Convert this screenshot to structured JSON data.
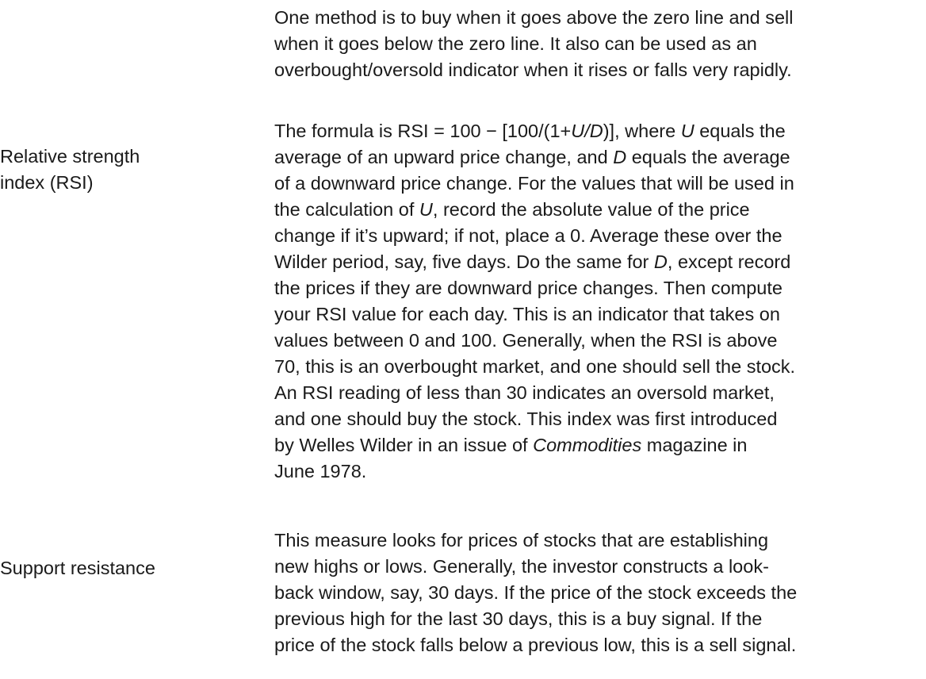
{
  "entries": [
    {
      "term": [],
      "definition": [
        "One method is to buy when it goes above the zero line and sell",
        "when it goes below the zero line. It also can be used as an",
        "overbought/oversold indicator when it rises or falls very rapidly."
      ]
    },
    {
      "term": [
        "Relative strength",
        "index (RSI)"
      ],
      "definition": {
        "l1_a": "The formula is RSI = 100 − [100/(1+",
        "l1_b": "U/D",
        "l1_c": ")], where ",
        "l1_d": "U",
        "l1_e": " equals the",
        "l2_a": "average of an upward price change, and ",
        "l2_b": "D",
        "l2_c": " equals the average",
        "l3": "of a downward price change. For the values that will be used in",
        "l4_a": "the calculation of ",
        "l4_b": "U",
        "l4_c": ", record the absolute value of the price",
        "l5": "change if it’s upward; if not, place a 0. Average these over the",
        "l6_a": "Wilder period, say, five days. Do the same for ",
        "l6_b": "D",
        "l6_c": ", except record",
        "l7": "the prices if they are downward price changes. Then compute",
        "l8": "your RSI value for each day. This is an indicator that takes on",
        "l9": "values between 0 and 100. Generally, when the RSI is above",
        "l10": "70, this is an overbought market, and one should sell the stock.",
        "l11": "An RSI reading of less than 30 indicates an oversold market,",
        "l12": "and one should buy the stock. This index was first introduced",
        "l13_a": "by Welles Wilder in an issue of ",
        "l13_b": "Commodities",
        "l13_c": " magazine in",
        "l14": "June 1978."
      }
    },
    {
      "term": [
        "Support resistance"
      ],
      "definition": [
        "This measure looks for prices of stocks that are establishing",
        "new highs or lows. Generally, the investor constructs a look-",
        "back window, say, 30 days. If the price of the stock exceeds the",
        "previous high for the last 30 days, this is a buy signal. If the",
        "price of the stock falls below a previous low, this is a sell signal."
      ]
    }
  ]
}
